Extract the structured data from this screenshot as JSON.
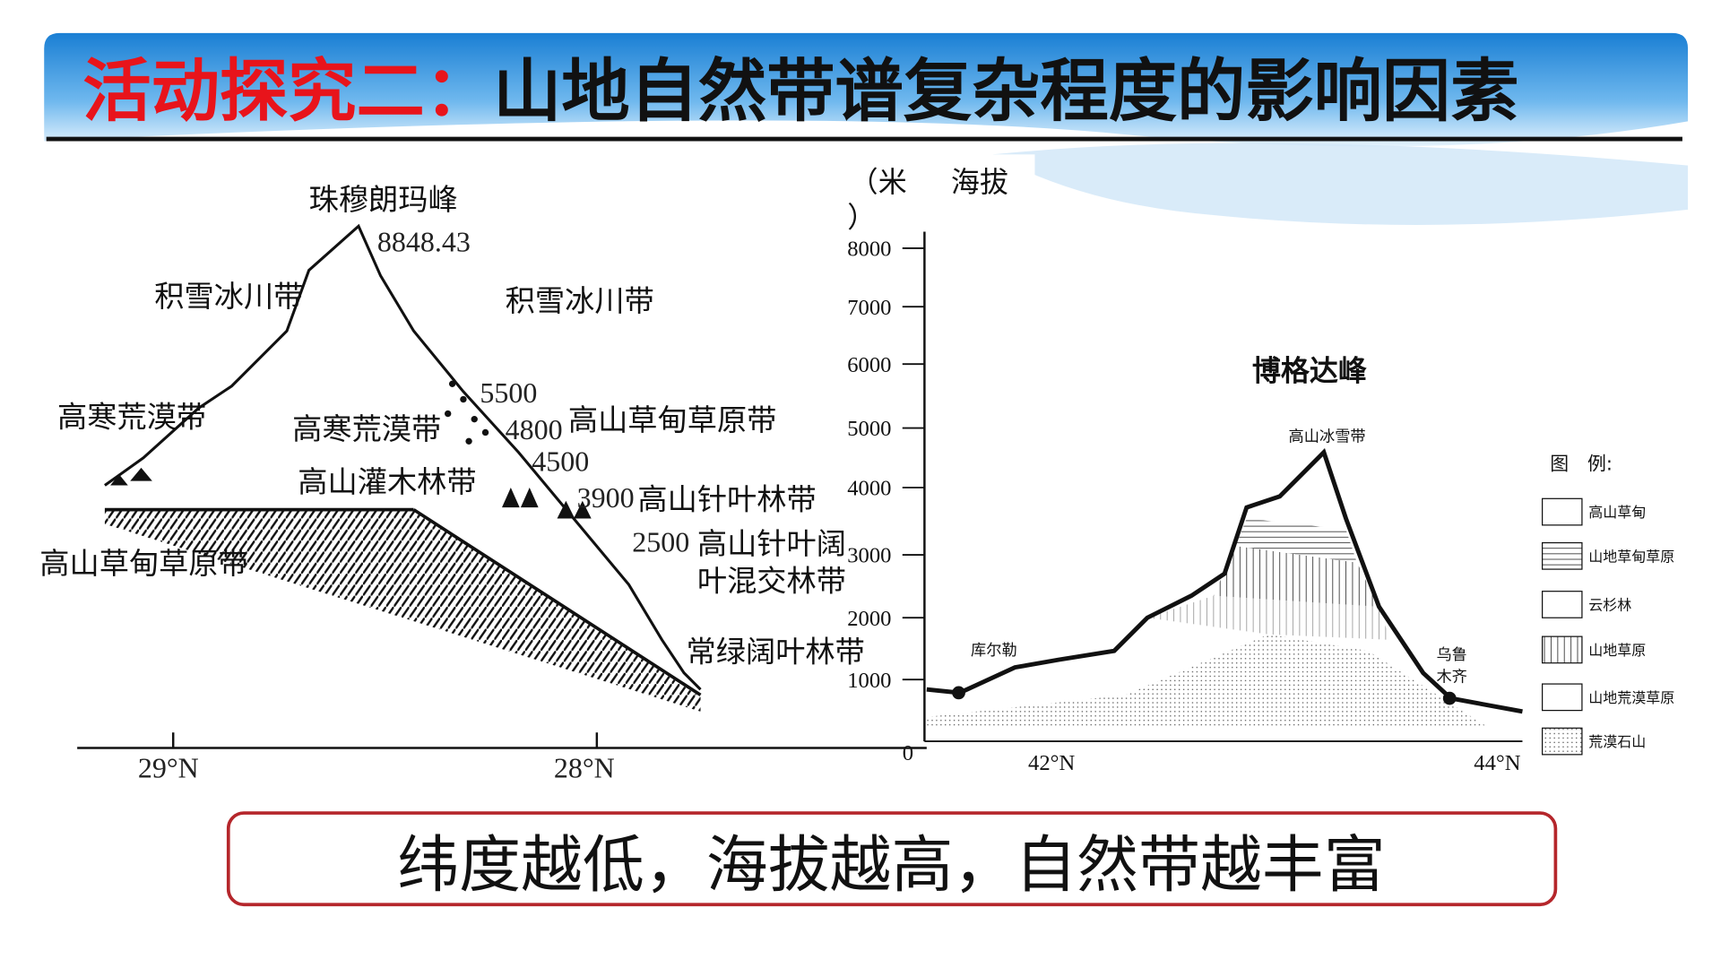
{
  "title": {
    "lead": "活动探究二：",
    "topic": "山地自然带谱复杂程度的影响因素"
  },
  "left_diagram": {
    "peak": "珠穆朗玛峰",
    "peak_elevation": "8848.43",
    "zones": [
      "积雪冰川带",
      "积雪冰川带",
      "高寒荒漠带",
      "高寒荒漠带",
      "高山灌木林带",
      "高山草甸草原带",
      "高山草甸草原带",
      "高山针叶林带",
      "高山针叶阔",
      "叶混交林带",
      "常绿阔叶林带"
    ],
    "elevations": [
      "5500",
      "4800",
      "4500",
      "3900",
      "2500"
    ],
    "x_labels": [
      "29°N",
      "28°N"
    ]
  },
  "right_diagram": {
    "y_title": "海拔",
    "y_unit_top": "（米",
    "y_unit_bottom": "）",
    "y_labels": [
      "8000",
      "7000",
      "6000",
      "5000",
      "4000",
      "3000",
      "2000",
      "1000",
      "0"
    ],
    "x_labels": [
      "42°N",
      "44°N"
    ],
    "peak": "博格达峰",
    "snow_zone": "高山冰雪带",
    "city_left": "库尔勒",
    "city_right_top": "乌鲁",
    "city_right_bottom": "木齐",
    "legend_title": "图　例:",
    "legend": [
      "高山草甸",
      "山地草甸草原",
      "云杉林",
      "山地草原",
      "山地荒漠草原",
      "荒漠石山"
    ]
  },
  "conclusion": "纬度越低，海拔越高，自然带越丰富"
}
